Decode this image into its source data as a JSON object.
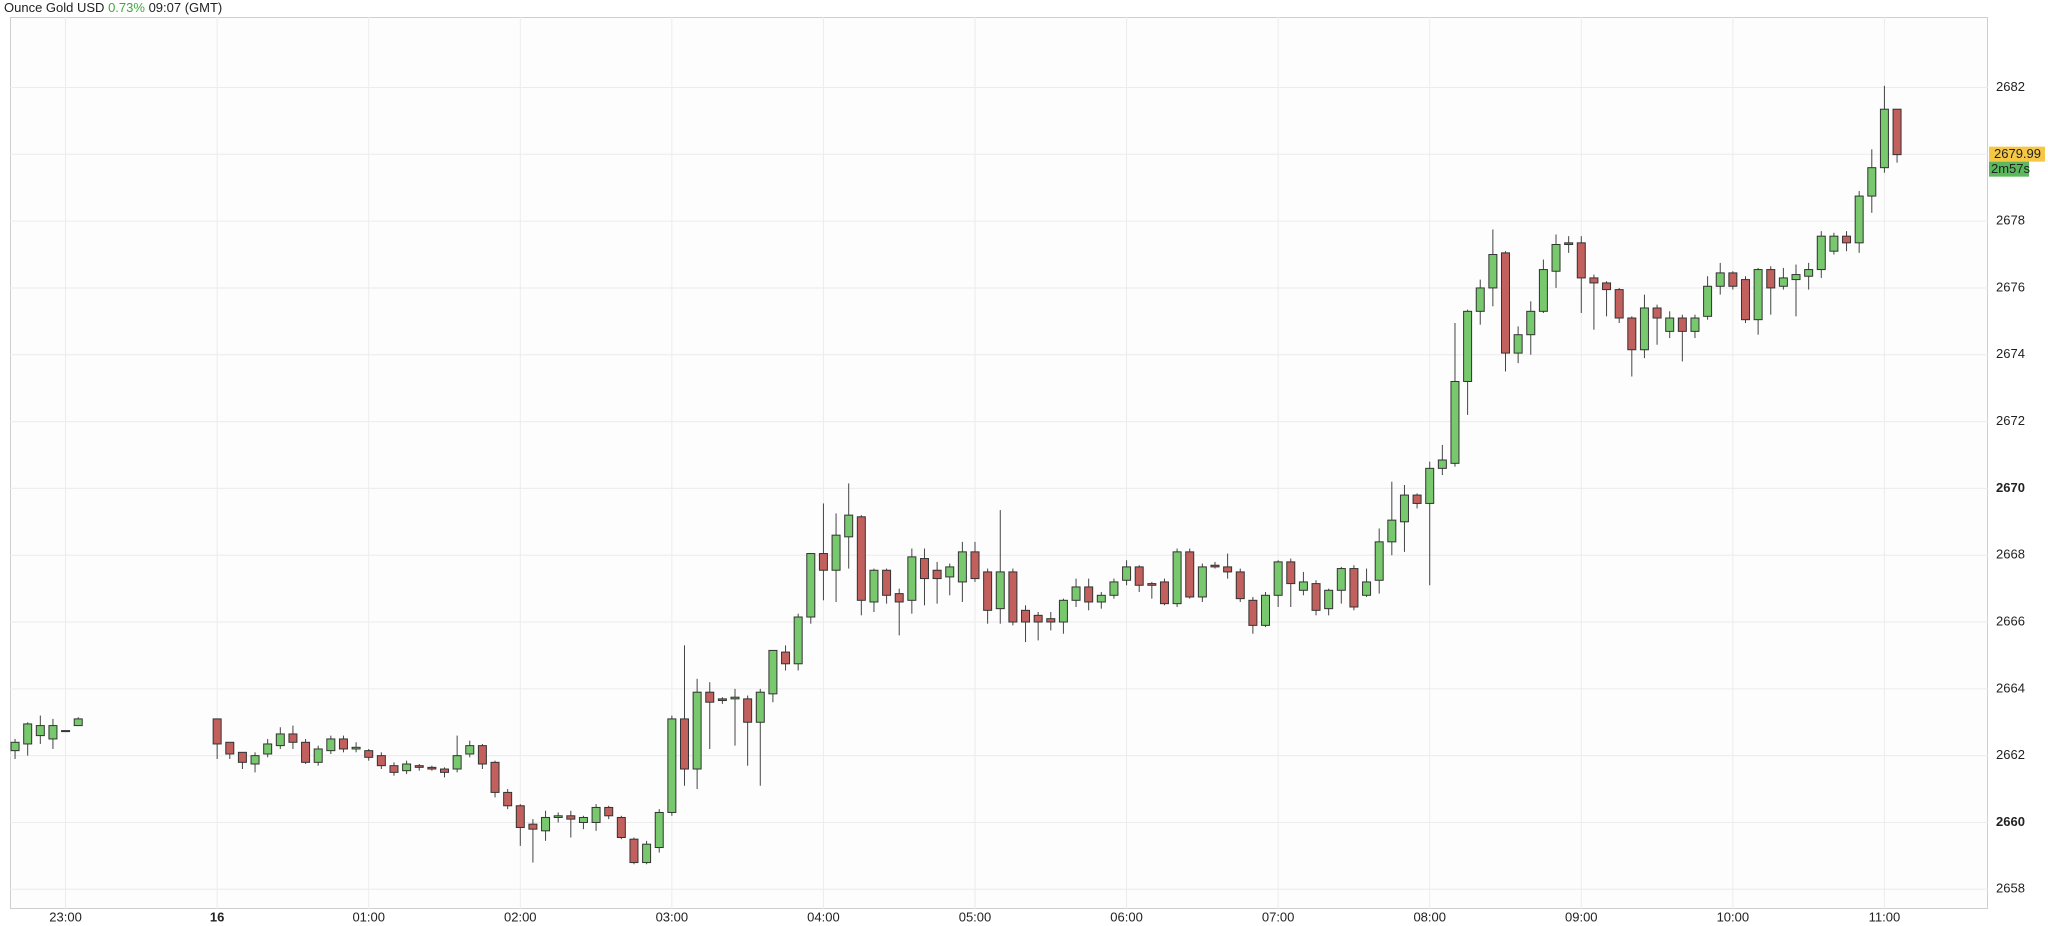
{
  "chart_data": {
    "type": "candlestick",
    "title": "Ounce Gold USD",
    "change": "0.73%",
    "time": "09:07 (GMT)",
    "last_price": 2679.99,
    "countdown": "2m57s",
    "up_color": "#78c96d",
    "down_color": "#c2605e",
    "grid": true,
    "xlim": [
      -82,
      701
    ],
    "ylim": [
      2657.41,
      2684.11
    ],
    "xticks": [
      {
        "value": -60,
        "label": "23:00"
      },
      {
        "value": 0,
        "label": "16"
      },
      {
        "value": 60,
        "label": "01:00"
      },
      {
        "value": 120,
        "label": "02:00"
      },
      {
        "value": 180,
        "label": "03:00"
      },
      {
        "value": 240,
        "label": "04:00"
      },
      {
        "value": 300,
        "label": "05:00"
      },
      {
        "value": 360,
        "label": "06:00"
      },
      {
        "value": 420,
        "label": "07:00"
      },
      {
        "value": 480,
        "label": "08:00"
      },
      {
        "value": 540,
        "label": "09:00"
      },
      {
        "value": 600,
        "label": "10:00"
      },
      {
        "value": 660,
        "label": "11:00"
      }
    ],
    "yticks": [
      2658,
      2660,
      2662,
      2664,
      2666,
      2668,
      2670,
      2672,
      2674,
      2676,
      2678,
      2680,
      2682
    ],
    "x": [
      -80,
      -75,
      -70,
      -65,
      -60,
      -55,
      0,
      5,
      10,
      15,
      20,
      25,
      30,
      35,
      40,
      45,
      50,
      55,
      60,
      65,
      70,
      75,
      80,
      85,
      90,
      95,
      100,
      105,
      110,
      115,
      120,
      125,
      130,
      135,
      140,
      145,
      150,
      155,
      160,
      165,
      170,
      175,
      180,
      185,
      190,
      195,
      200,
      205,
      210,
      215,
      220,
      225,
      230,
      235,
      240,
      245,
      250,
      255,
      260,
      265,
      270,
      275,
      280,
      285,
      290,
      295,
      300,
      305,
      310,
      315,
      320,
      325,
      330,
      335,
      340,
      345,
      350,
      355,
      360,
      365,
      370,
      375,
      380,
      385,
      390,
      395,
      400,
      405,
      410,
      415,
      420,
      425,
      430,
      435,
      440,
      445,
      450,
      455,
      460,
      465,
      470,
      475,
      480,
      485,
      490,
      495,
      500,
      505,
      510,
      515,
      520,
      525,
      530,
      535,
      540,
      545,
      550,
      555,
      560,
      565,
      570,
      575,
      580,
      585,
      590,
      595,
      600,
      605,
      610,
      615,
      620,
      625,
      630,
      635,
      640,
      645,
      650,
      655,
      660,
      665
    ],
    "open": [
      2662.15,
      2662.35,
      2662.6,
      2662.5,
      2662.75,
      2662.9,
      2663.1,
      2662.4,
      2662.1,
      2661.75,
      2662.05,
      2662.3,
      2662.65,
      2662.4,
      2661.8,
      2662.15,
      2662.5,
      2662.2,
      2662.15,
      2662.0,
      2661.7,
      2661.55,
      2661.7,
      2661.65,
      2661.6,
      2661.6,
      2662.05,
      2662.3,
      2661.8,
      2660.9,
      2660.5,
      2659.95,
      2659.75,
      2660.15,
      2660.2,
      2660.0,
      2660.0,
      2660.45,
      2660.15,
      2659.5,
      2658.8,
      2659.25,
      2660.3,
      2663.1,
      2661.6,
      2663.9,
      2663.7,
      2663.7,
      2663.7,
      2663.0,
      2663.85,
      2665.1,
      2664.75,
      2666.15,
      2668.05,
      2667.55,
      2668.55,
      2669.15,
      2666.6,
      2667.55,
      2666.85,
      2666.65,
      2667.9,
      2667.55,
      2667.35,
      2667.2,
      2668.1,
      2667.5,
      2666.4,
      2667.5,
      2666.35,
      2666.2,
      2666.1,
      2666.0,
      2666.65,
      2667.05,
      2666.6,
      2666.8,
      2667.25,
      2667.65,
      2667.15,
      2667.2,
      2666.55,
      2668.1,
      2666.75,
      2667.7,
      2667.65,
      2667.5,
      2666.65,
      2665.9,
      2666.8,
      2667.8,
      2666.95,
      2667.15,
      2666.4,
      2666.95,
      2667.6,
      2666.8,
      2667.25,
      2668.4,
      2669.0,
      2669.8,
      2669.55,
      2670.6,
      2670.75,
      2673.2,
      2675.3,
      2676.0,
      2677.05,
      2674.05,
      2674.6,
      2675.3,
      2676.5,
      2677.35,
      2677.35,
      2676.3,
      2676.15,
      2675.95,
      2675.1,
      2674.15,
      2675.4,
      2674.7,
      2675.1,
      2674.7,
      2675.15,
      2676.05,
      2676.45,
      2676.25,
      2675.05,
      2676.55,
      2676.05,
      2676.25,
      2676.35,
      2676.55,
      2677.1,
      2677.55,
      2677.35,
      2678.75,
      2679.6,
      2681.35
    ],
    "high": [
      2662.5,
      2663.0,
      2663.2,
      2663.1,
      2662.75,
      2663.15,
      2663.1,
      2662.4,
      2662.1,
      2662.1,
      2662.5,
      2662.85,
      2662.9,
      2662.5,
      2662.3,
      2662.6,
      2662.6,
      2662.4,
      2662.2,
      2662.1,
      2661.8,
      2661.85,
      2661.75,
      2661.7,
      2661.65,
      2662.6,
      2662.45,
      2662.35,
      2661.85,
      2661.0,
      2660.55,
      2660.1,
      2660.35,
      2660.3,
      2660.35,
      2660.2,
      2660.55,
      2660.5,
      2660.2,
      2659.55,
      2659.45,
      2660.4,
      2663.2,
      2665.3,
      2664.3,
      2664.2,
      2663.75,
      2664.0,
      2663.8,
      2664.0,
      2665.15,
      2665.3,
      2666.25,
      2668.05,
      2669.55,
      2669.25,
      2670.15,
      2669.2,
      2667.6,
      2667.6,
      2667.0,
      2668.2,
      2668.2,
      2667.8,
      2667.75,
      2668.4,
      2668.4,
      2667.6,
      2669.35,
      2667.6,
      2666.5,
      2666.3,
      2666.3,
      2666.7,
      2667.3,
      2667.3,
      2666.9,
      2667.3,
      2667.85,
      2667.7,
      2667.2,
      2667.3,
      2668.2,
      2668.2,
      2667.75,
      2667.8,
      2668.05,
      2667.6,
      2666.75,
      2666.9,
      2667.85,
      2667.9,
      2667.5,
      2667.25,
      2667.0,
      2667.65,
      2667.7,
      2667.6,
      2668.8,
      2670.2,
      2670.1,
      2669.85,
      2670.8,
      2671.3,
      2674.95,
      2675.35,
      2676.25,
      2677.75,
      2677.1,
      2674.85,
      2675.6,
      2676.85,
      2677.6,
      2677.55,
      2677.55,
      2676.4,
      2676.2,
      2676.0,
      2675.15,
      2675.8,
      2675.5,
      2675.3,
      2675.2,
      2675.2,
      2676.35,
      2676.75,
      2676.5,
      2676.35,
      2676.6,
      2676.65,
      2676.6,
      2676.7,
      2676.75,
      2677.7,
      2677.65,
      2677.7,
      2678.9,
      2680.15,
      2682.05,
      2681.35
    ],
    "low": [
      2661.9,
      2662.0,
      2662.35,
      2662.2,
      2662.75,
      2662.9,
      2661.9,
      2661.9,
      2661.6,
      2661.5,
      2661.95,
      2662.2,
      2662.2,
      2661.75,
      2661.7,
      2662.05,
      2662.1,
      2662.1,
      2661.85,
      2661.6,
      2661.4,
      2661.45,
      2661.55,
      2661.55,
      2661.35,
      2661.5,
      2661.95,
      2661.6,
      2660.75,
      2660.4,
      2659.3,
      2658.8,
      2659.45,
      2660.0,
      2659.55,
      2659.8,
      2659.75,
      2660.1,
      2659.5,
      2658.75,
      2658.75,
      2659.1,
      2660.2,
      2661.1,
      2661.0,
      2662.2,
      2663.55,
      2662.3,
      2661.7,
      2661.1,
      2663.6,
      2664.55,
      2664.55,
      2665.95,
      2666.65,
      2666.6,
      2667.6,
      2666.2,
      2666.3,
      2666.55,
      2665.6,
      2666.25,
      2666.5,
      2666.55,
      2666.8,
      2666.6,
      2667.2,
      2665.95,
      2665.95,
      2665.9,
      2665.4,
      2665.45,
      2665.75,
      2665.65,
      2666.45,
      2666.35,
      2666.4,
      2666.7,
      2667.1,
      2666.9,
      2666.7,
      2666.5,
      2666.45,
      2666.7,
      2666.6,
      2667.6,
      2667.3,
      2666.6,
      2665.65,
      2665.85,
      2666.45,
      2666.45,
      2666.8,
      2666.2,
      2666.2,
      2666.55,
      2666.35,
      2666.75,
      2666.85,
      2668.0,
      2668.1,
      2669.4,
      2667.1,
      2670.4,
      2670.65,
      2672.2,
      2674.9,
      2675.45,
      2673.5,
      2673.75,
      2674.0,
      2675.25,
      2676.0,
      2677.05,
      2675.25,
      2674.75,
      2675.15,
      2674.95,
      2673.35,
      2673.9,
      2674.3,
      2674.5,
      2673.8,
      2674.5,
      2675.05,
      2675.8,
      2675.95,
      2674.95,
      2674.6,
      2675.2,
      2675.95,
      2675.15,
      2675.95,
      2676.3,
      2677.0,
      2677.1,
      2677.05,
      2678.25,
      2679.45,
      2679.75
    ],
    "close": [
      2662.4,
      2662.95,
      2662.9,
      2662.9,
      2662.75,
      2663.1,
      2662.35,
      2662.05,
      2661.8,
      2662.0,
      2662.35,
      2662.65,
      2662.4,
      2661.8,
      2662.2,
      2662.5,
      2662.2,
      2662.25,
      2661.95,
      2661.7,
      2661.5,
      2661.75,
      2661.65,
      2661.6,
      2661.5,
      2662.0,
      2662.3,
      2661.75,
      2660.9,
      2660.5,
      2659.85,
      2659.8,
      2660.15,
      2660.2,
      2660.1,
      2660.15,
      2660.45,
      2660.2,
      2659.55,
      2658.8,
      2659.35,
      2660.3,
      2663.1,
      2661.6,
      2663.9,
      2663.6,
      2663.65,
      2663.75,
      2663.0,
      2663.9,
      2665.15,
      2664.75,
      2666.15,
      2668.05,
      2667.55,
      2668.6,
      2669.2,
      2666.65,
      2667.55,
      2666.8,
      2666.6,
      2667.95,
      2667.3,
      2667.3,
      2667.65,
      2668.1,
      2667.3,
      2666.35,
      2667.5,
      2666.0,
      2666.0,
      2666.0,
      2666.0,
      2666.65,
      2667.05,
      2666.6,
      2666.8,
      2667.2,
      2667.65,
      2667.1,
      2667.1,
      2666.55,
      2668.1,
      2666.75,
      2667.65,
      2667.65,
      2667.5,
      2666.7,
      2665.9,
      2666.8,
      2667.8,
      2667.15,
      2667.2,
      2666.35,
      2666.95,
      2667.6,
      2666.45,
      2667.2,
      2668.4,
      2669.05,
      2669.8,
      2669.55,
      2670.6,
      2670.85,
      2673.2,
      2675.3,
      2676.0,
      2677.0,
      2674.05,
      2674.6,
      2675.3,
      2676.55,
      2677.3,
      2677.3,
      2676.3,
      2676.15,
      2675.95,
      2675.1,
      2674.15,
      2675.4,
      2675.1,
      2675.1,
      2674.7,
      2675.1,
      2676.05,
      2676.45,
      2676.05,
      2675.05,
      2676.55,
      2676.0,
      2676.3,
      2676.4,
      2676.55,
      2677.55,
      2677.55,
      2677.35,
      2678.75,
      2679.6,
      2681.35,
      2679.99
    ]
  }
}
